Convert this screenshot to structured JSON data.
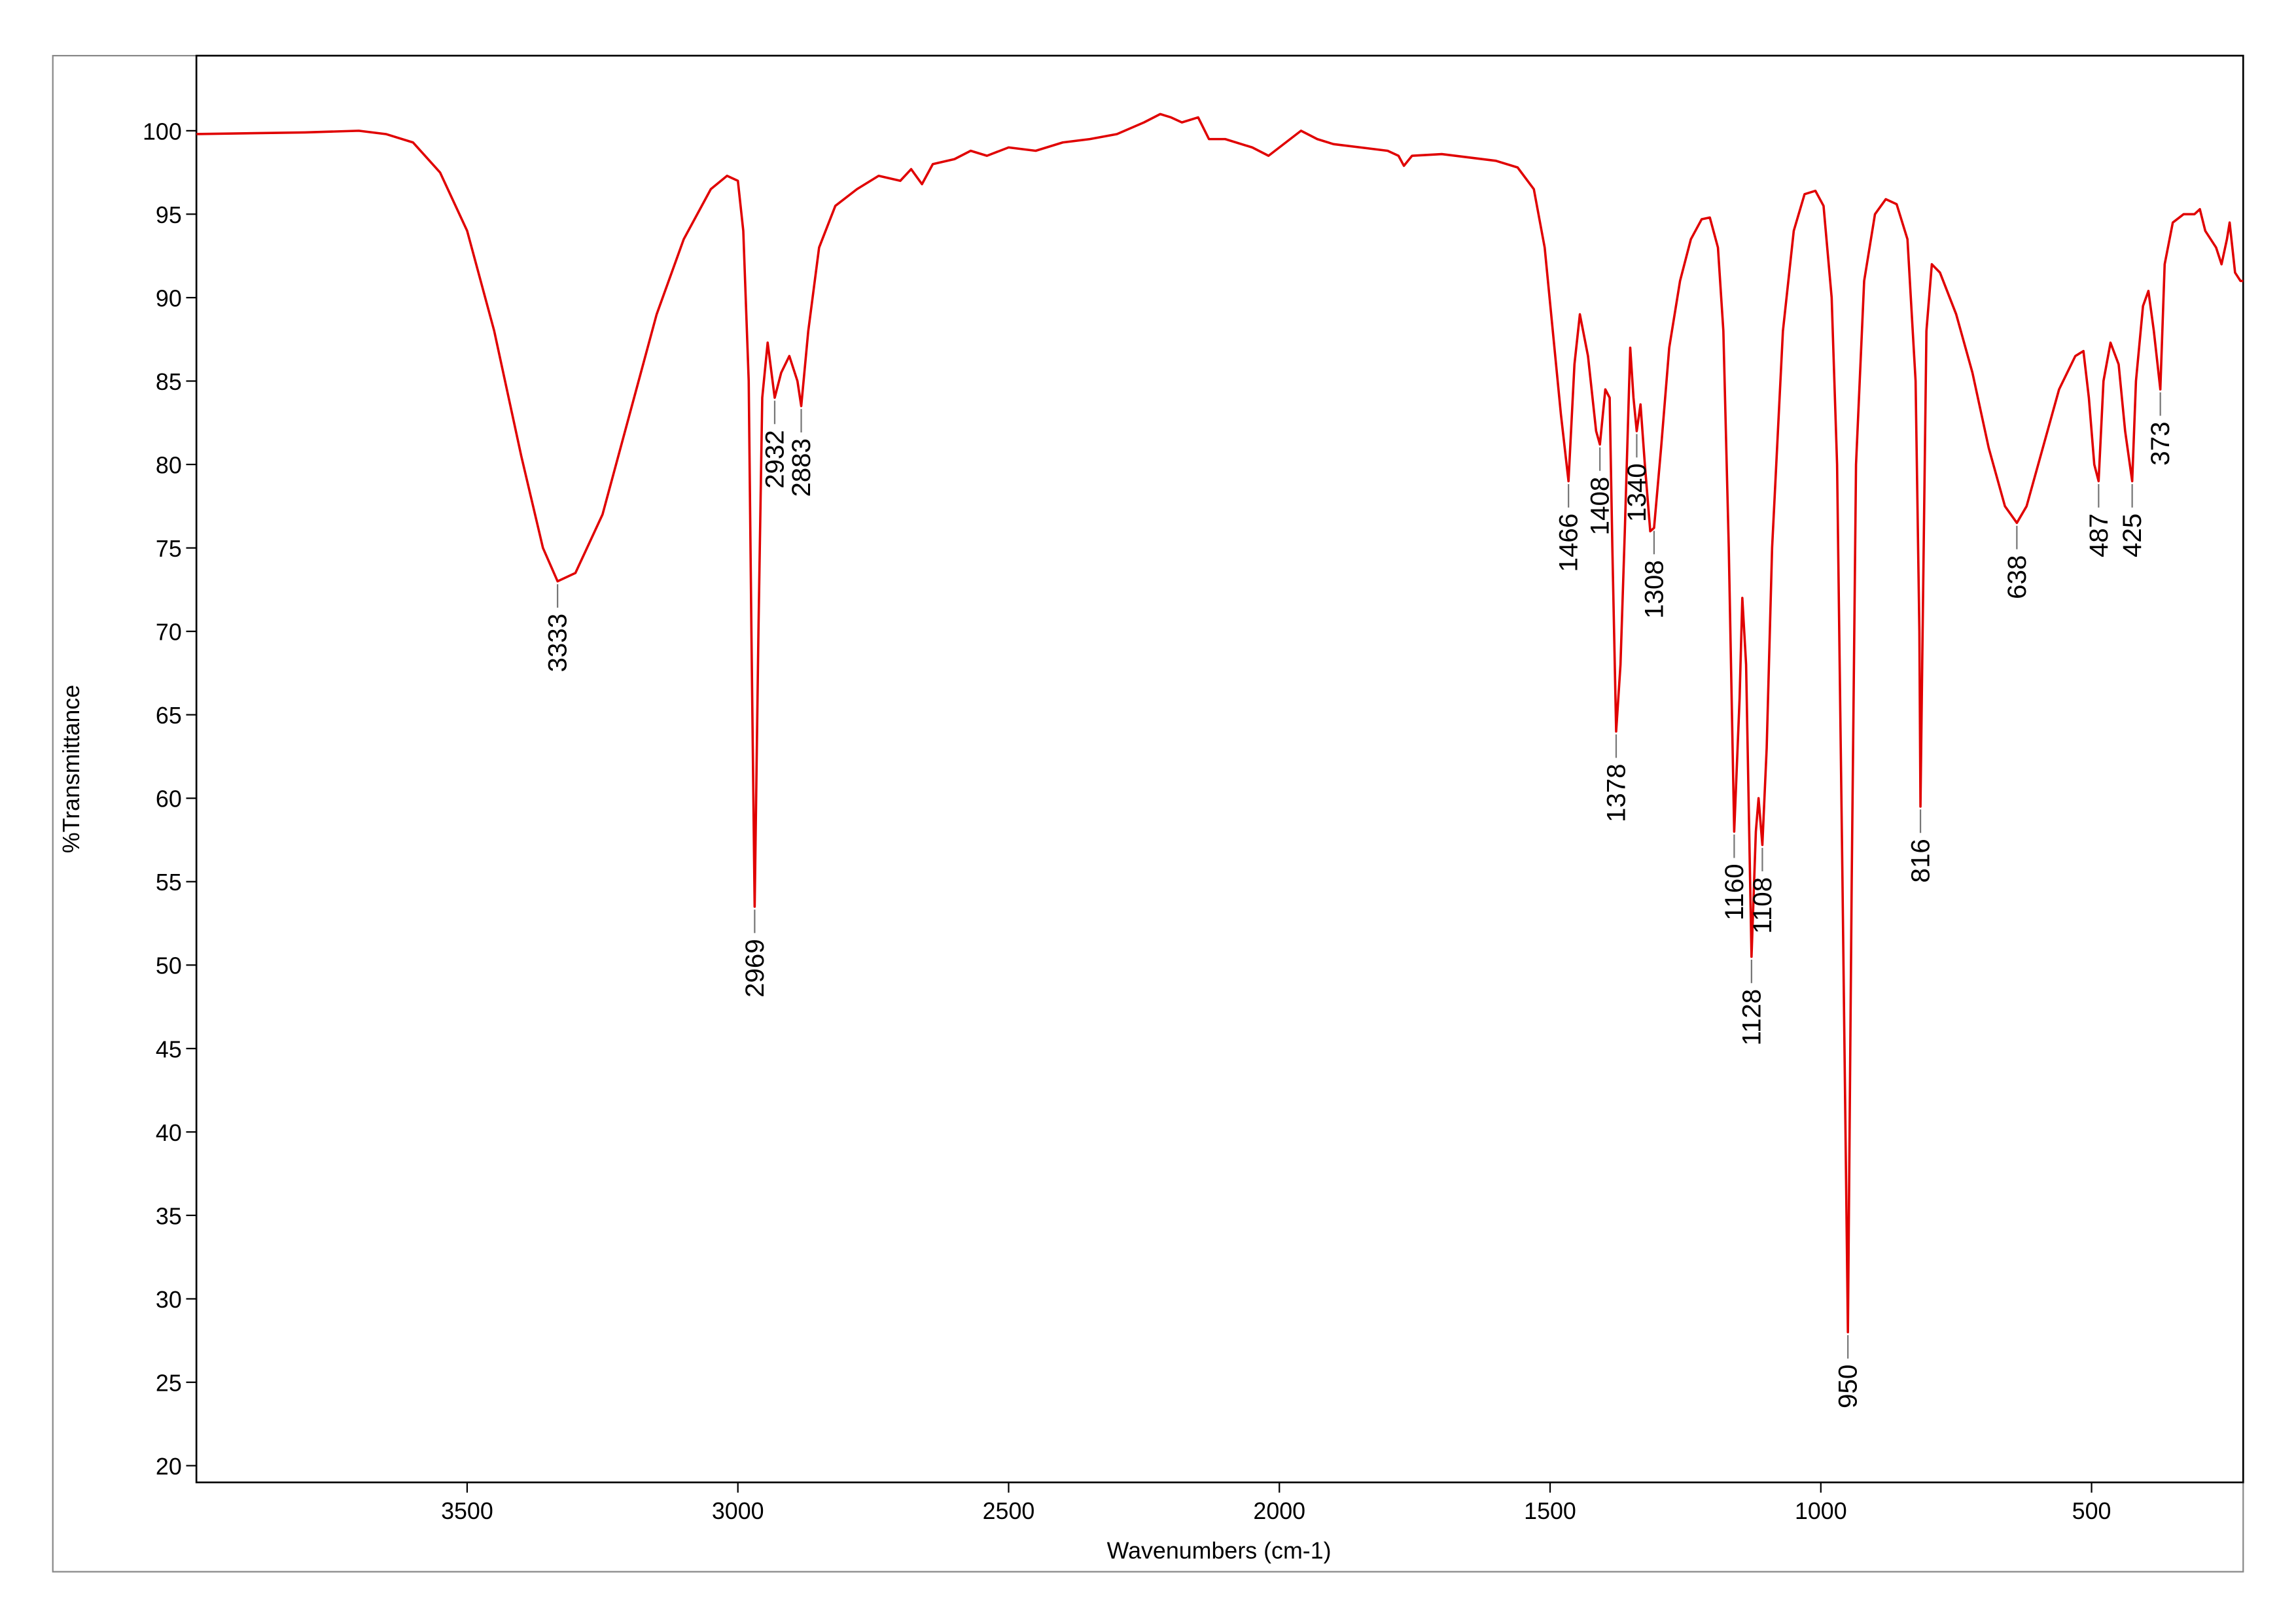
{
  "chart_data": {
    "type": "line",
    "x_label": "Wavenumbers (cm-1)",
    "y_label": "%Transmittance",
    "x": [
      4000,
      3800,
      3700,
      3650,
      3600,
      3550,
      3500,
      3450,
      3400,
      3360,
      3333,
      3300,
      3250,
      3200,
      3150,
      3100,
      3050,
      3020,
      3000,
      2990,
      2980,
      2975,
      2969,
      2962,
      2955,
      2945,
      2932,
      2920,
      2905,
      2890,
      2883,
      2870,
      2850,
      2820,
      2780,
      2740,
      2700,
      2680,
      2660,
      2640,
      2600,
      2570,
      2540,
      2500,
      2450,
      2400,
      2350,
      2300,
      2250,
      2220,
      2200,
      2180,
      2150,
      2130,
      2100,
      2050,
      2020,
      2000,
      1980,
      1960,
      1930,
      1900,
      1850,
      1800,
      1780,
      1770,
      1755,
      1700,
      1650,
      1600,
      1560,
      1530,
      1510,
      1495,
      1480,
      1466,
      1455,
      1445,
      1430,
      1415,
      1408,
      1398,
      1390,
      1385,
      1378,
      1370,
      1362,
      1352,
      1346,
      1340,
      1333,
      1325,
      1315,
      1308,
      1295,
      1280,
      1260,
      1240,
      1220,
      1205,
      1190,
      1180,
      1170,
      1160,
      1150,
      1145,
      1138,
      1128,
      1120,
      1115,
      1108,
      1100,
      1090,
      1070,
      1050,
      1030,
      1010,
      995,
      980,
      970,
      960,
      950,
      943,
      935,
      920,
      900,
      880,
      860,
      840,
      825,
      818,
      816,
      812,
      805,
      795,
      780,
      750,
      720,
      690,
      660,
      638,
      620,
      590,
      560,
      530,
      515,
      505,
      495,
      487,
      478,
      465,
      450,
      438,
      425,
      418,
      405,
      395,
      385,
      373,
      365,
      350,
      330,
      310,
      300,
      290,
      270,
      260,
      250,
      245,
      235,
      225,
      220
    ],
    "values": [
      99.8,
      99.9,
      100.0,
      99.8,
      99.3,
      97.5,
      94,
      88,
      80.5,
      75,
      73,
      73.5,
      77,
      83,
      89,
      93.5,
      96.5,
      97.3,
      97,
      94,
      85,
      70,
      53.5,
      70,
      84,
      87.3,
      84,
      85.5,
      86.5,
      85,
      83.5,
      88,
      93,
      95.5,
      96.5,
      97.3,
      97,
      97.7,
      96.8,
      98,
      98.3,
      98.8,
      98.5,
      99,
      98.8,
      99.3,
      99.5,
      99.8,
      100.5,
      101,
      100.8,
      100.5,
      100.8,
      99.5,
      99.5,
      99,
      98.5,
      99,
      99.5,
      100,
      99.5,
      99.2,
      99,
      98.8,
      98.5,
      97.9,
      98.5,
      98.6,
      98.4,
      98.2,
      97.8,
      96.5,
      93,
      88,
      83,
      79,
      86,
      89,
      86.5,
      82,
      81.2,
      84.5,
      84,
      75,
      64,
      68,
      76,
      87,
      84,
      82,
      83.6,
      80,
      76,
      76.2,
      81,
      87,
      91,
      93.5,
      94.7,
      94.8,
      93,
      88,
      75,
      58,
      66,
      72,
      68,
      50.5,
      58,
      60,
      57.2,
      63,
      75,
      88,
      94,
      96.2,
      96.4,
      95.5,
      90,
      80,
      55,
      28,
      55,
      80,
      91,
      95,
      95.9,
      95.6,
      93.5,
      85,
      70,
      59.5,
      70,
      88,
      92,
      91.5,
      89,
      85.5,
      81,
      77.5,
      76.5,
      77.5,
      81,
      84.5,
      86.5,
      86.8,
      84,
      80,
      79,
      85,
      87.3,
      86,
      82,
      79,
      85,
      89.5,
      90.4,
      88,
      84.5,
      92,
      94.5,
      95,
      95,
      95.3,
      94,
      93,
      92,
      93.5,
      94.5,
      91.5,
      91,
      91
    ],
    "color": "#e00000",
    "peak_labels": [
      3333,
      2969,
      2932,
      2883,
      1466,
      1408,
      1378,
      1340,
      1308,
      1160,
      1128,
      1108,
      950,
      816,
      638,
      487,
      425,
      373
    ],
    "xlim": [
      4000,
      220
    ],
    "ylim": [
      19,
      104.5
    ],
    "xticks": [
      3500,
      3000,
      2500,
      2000,
      1500,
      1000,
      500
    ],
    "yticks": [
      20,
      25,
      30,
      35,
      40,
      45,
      50,
      55,
      60,
      65,
      70,
      75,
      80,
      85,
      90,
      95,
      100
    ]
  }
}
